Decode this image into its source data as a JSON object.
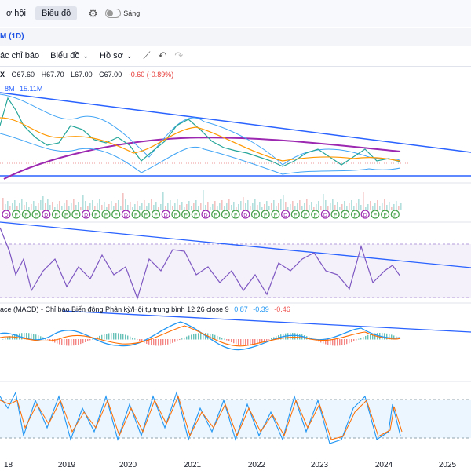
{
  "topbar": {
    "tab1": "ơ hội",
    "tab2": "Biểu đồ",
    "theme_label": "Sáng"
  },
  "symbol_title": "M (1D)",
  "toolbar": {
    "indicators": "ác chỉ báo",
    "chart": "Biểu đồ",
    "profile": "Hồ sơ"
  },
  "legend": {
    "sym": "X",
    "o": "O67.60",
    "h": "H67.70",
    "l": "L67.00",
    "c": "C67.00",
    "chg": "-0.60 (-0.89%)",
    "vol_a": "8M",
    "vol_b": "15.11M"
  },
  "macd_legend": {
    "label": "ace (MACD) - Chỉ báo Biến động Phân kỳ/Hội tụ trung bình 12 26 close 9",
    "v1": "0.87",
    "v2": "-0.39",
    "v3": "-0.46"
  },
  "colors": {
    "trend": "#2962ff",
    "ma_long": "#9c27b0",
    "bb": "#42a5f5",
    "ma": "#ff9800",
    "up": "#26a69a",
    "down": "#ef5350",
    "rsi": "#7e57c2",
    "macd": "#2196f3",
    "signal": "#ff6d00"
  },
  "chart_data": [
    {
      "type": "line",
      "name": "price",
      "x": [
        "2018",
        "2018.5",
        "2019",
        "2019.5",
        "2020",
        "2020.25",
        "2020.5",
        "2021",
        "2021.25",
        "2021.5",
        "2022",
        "2022.5",
        "2023",
        "2023.5",
        "2024",
        "2024.25"
      ],
      "series": [
        {
          "name": "close",
          "values": [
            88,
            95,
            72,
            84,
            70,
            62,
            74,
            90,
            86,
            76,
            74,
            66,
            72,
            70,
            70,
            67
          ]
        }
      ],
      "xticks": [
        "18",
        "2019",
        "2020",
        "2021",
        "2022",
        "2023",
        "2024",
        "2025"
      ]
    },
    {
      "type": "line",
      "name": "rsi",
      "values": [
        62,
        40,
        45,
        38,
        54,
        42,
        58,
        46,
        62,
        50,
        44,
        36,
        48,
        40,
        46,
        52,
        58,
        38,
        62,
        48,
        44,
        60,
        40
      ]
    },
    {
      "type": "line",
      "name": "macd",
      "values": [
        0.87,
        -0.39,
        -0.46
      ]
    }
  ]
}
